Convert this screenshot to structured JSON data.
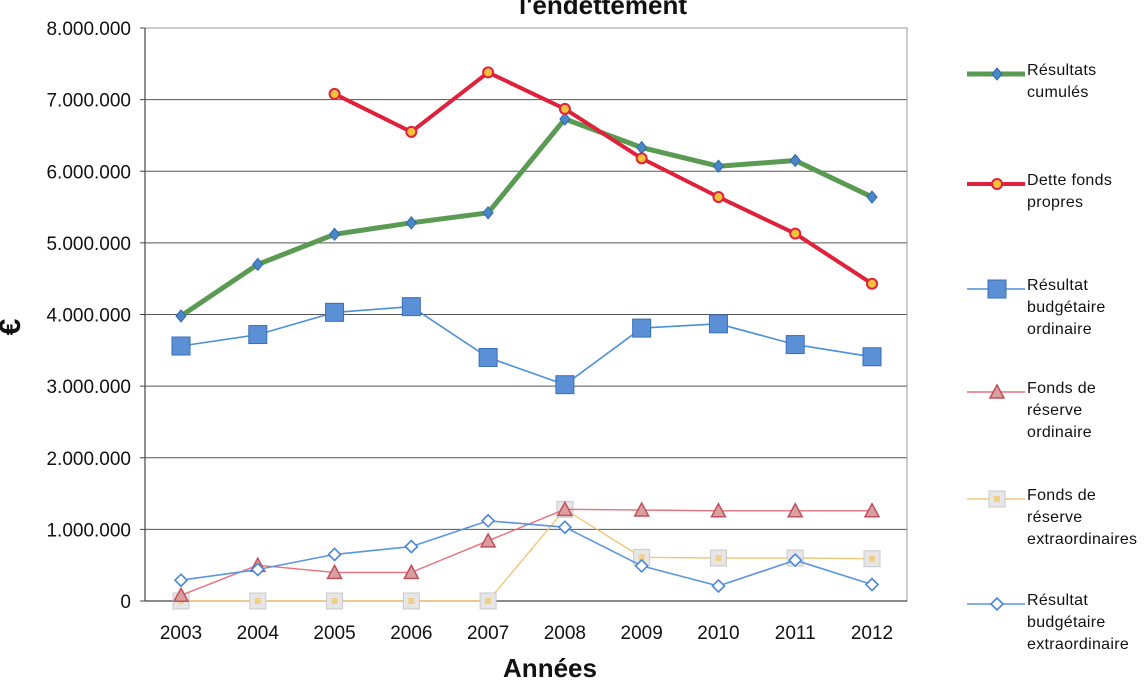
{
  "chart_data": {
    "type": "line",
    "title": "l'endettement",
    "xlabel": "Années",
    "ylabel": "€",
    "categories": [
      "2003",
      "2004",
      "2005",
      "2006",
      "2007",
      "2008",
      "2009",
      "2010",
      "2011",
      "2012"
    ],
    "ylim": [
      0,
      8000000
    ],
    "yticks": [
      0,
      1000000,
      2000000,
      3000000,
      4000000,
      5000000,
      6000000,
      7000000,
      8000000
    ],
    "ytick_labels": [
      "0",
      "1.000.000",
      "2.000.000",
      "3.000.000",
      "4.000.000",
      "5.000.000",
      "6.000.000",
      "7.000.000",
      "8.000.000"
    ],
    "grid": true,
    "legend_position": "right",
    "series": [
      {
        "name": "Résultats cumulés",
        "legend_lines": [
          "Résultats",
          "cumulés"
        ],
        "color": "#5a9a52",
        "marker": "diamond-small",
        "values": [
          3980000,
          4700000,
          5120000,
          5280000,
          5420000,
          6730000,
          6330000,
          6070000,
          6150000,
          5640000
        ]
      },
      {
        "name": "Dette fonds propres",
        "legend_lines": [
          "Dette fonds",
          "propres"
        ],
        "color": "#e0213c",
        "marker": "circle",
        "values": [
          null,
          null,
          7080000,
          6550000,
          7380000,
          6870000,
          6180000,
          5640000,
          5130000,
          4430000
        ]
      },
      {
        "name": "Résultat budgétaire ordinaire",
        "legend_lines": [
          "Résultat",
          "budgétaire",
          "ordinaire"
        ],
        "color": "#4a8fd8",
        "marker": "square",
        "values": [
          3560000,
          3720000,
          4030000,
          4110000,
          3400000,
          3020000,
          3810000,
          3870000,
          3580000,
          3410000
        ]
      },
      {
        "name": "Fonds de réserve ordinaire",
        "legend_lines": [
          "Fonds de",
          "réserve",
          "ordinaire"
        ],
        "color": "#e8717f",
        "marker": "triangle",
        "values": [
          80000,
          500000,
          400000,
          400000,
          840000,
          1280000,
          1270000,
          1260000,
          1260000,
          1260000
        ]
      },
      {
        "name": "Fonds de réserve extraordinaires",
        "legend_lines": [
          "Fonds de",
          "réserve",
          "extraordinaires"
        ],
        "color": "#f2c77a",
        "marker": "square-light",
        "values": [
          0,
          0,
          0,
          0,
          0,
          1280000,
          610000,
          600000,
          600000,
          590000
        ]
      },
      {
        "name": "Résultat budgétaire extraordinaire",
        "legend_lines": [
          "Résultat",
          "budgétaire",
          "extraordinaire"
        ],
        "color": "#5b95e0",
        "marker": "diamond-open",
        "values": [
          290000,
          440000,
          650000,
          760000,
          1120000,
          1030000,
          490000,
          210000,
          570000,
          230000
        ]
      }
    ]
  }
}
